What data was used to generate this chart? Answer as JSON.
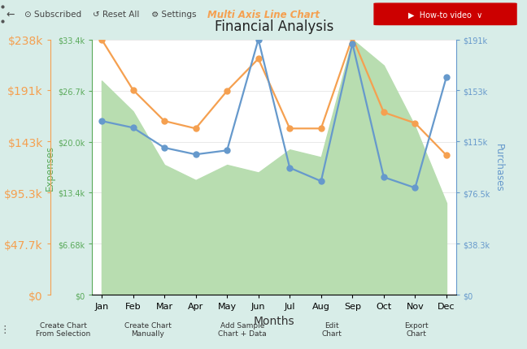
{
  "title": "Financial Analysis",
  "xlabel": "Months",
  "months": [
    "Jan",
    "Feb",
    "Mar",
    "Apr",
    "May",
    "Jun",
    "Jul",
    "Aug",
    "Sep",
    "Oct",
    "Nov",
    "Dec"
  ],
  "expenses": [
    28000,
    24000,
    17000,
    15000,
    17000,
    16000,
    19000,
    18000,
    33400,
    30000,
    22000,
    12000
  ],
  "sales": [
    238000,
    191000,
    162000,
    155000,
    190000,
    220000,
    155000,
    155000,
    240000,
    170000,
    160000,
    130000
  ],
  "purchases": [
    130000,
    125000,
    110000,
    105000,
    108000,
    191000,
    95000,
    85000,
    188000,
    88000,
    80000,
    163000
  ],
  "expenses_label_color": "#5aaa5a",
  "sales_color": "#f5a050",
  "purchases_color": "#6699cc",
  "bg_color": "#d8ede8",
  "toolbar_color": "#d0e8d8",
  "plot_bg": "#ffffff",
  "area_color": "#b8ddb0",
  "expenses_yticks": [
    0,
    6680,
    13400,
    20000,
    26700,
    33400
  ],
  "expenses_yticklabels": [
    "$0",
    "$6.68k",
    "$13.4k",
    "$20.0k",
    "$26.7k",
    "$33.4k"
  ],
  "sales_yticks": [
    0,
    47700,
    95300,
    143000,
    191000,
    238000
  ],
  "sales_yticklabels": [
    "$0",
    "$47.7k",
    "$95.3k",
    "$143k",
    "$191k",
    "$238k"
  ],
  "purchases_yticks": [
    0,
    38300,
    76500,
    115000,
    153000,
    191000
  ],
  "purchases_yticklabels": [
    "$0",
    "$38.3k",
    "$76.5k",
    "$115k",
    "$153k",
    "$191k"
  ],
  "ylim_expenses": [
    0,
    33400
  ],
  "ylim_sales": [
    0,
    238000
  ],
  "ylim_purchases": [
    0,
    191000
  ],
  "figsize": [
    6.48,
    4.31
  ],
  "dpi": 100,
  "toolbar_top_text": "Multi Axis Line Chart",
  "toolbar_top_items": [
    "Subscribed",
    "Reset All",
    "Settings"
  ],
  "toolbar_bot_items": [
    "Create Chart\nFrom Selection",
    "Create Chart\nManually",
    "Add Sample\nChart + Data",
    "Edit\nChart",
    "Export\nChart"
  ]
}
